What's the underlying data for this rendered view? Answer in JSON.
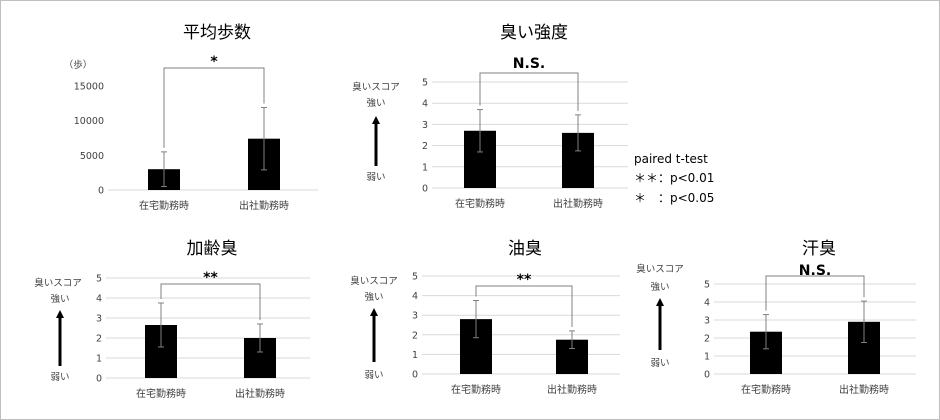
{
  "colors": {
    "bar": "#000000",
    "grid": "#d9d9d9",
    "error_bar": "#808080",
    "bracket": "#808080",
    "text": "#404040",
    "arrow": "#000000"
  },
  "legend": {
    "title": "paired t-test",
    "line1": "＊＊：p<0.01",
    "line2": "＊　：p<0.05"
  },
  "arrow_labels": {
    "score": "臭いスコア",
    "strong": "強い",
    "weak": "弱い"
  },
  "chart_data": [
    {
      "type": "bar",
      "title": "平均歩数",
      "unit_label": "（歩）",
      "categories": [
        "在宅勤務時",
        "出社勤務時"
      ],
      "values": [
        3000,
        7400
      ],
      "error": [
        2500,
        4500
      ],
      "ylim": [
        0,
        15000
      ],
      "yticks": [
        0,
        5000,
        10000,
        15000
      ],
      "significance": "*",
      "grid": false
    },
    {
      "type": "bar",
      "title": "臭い強度",
      "categories": [
        "在宅勤務時",
        "出社勤務時"
      ],
      "values": [
        2.7,
        2.6
      ],
      "error": [
        1.0,
        0.85
      ],
      "ylim": [
        0,
        5
      ],
      "yticks": [
        0,
        1,
        2,
        3,
        4,
        5
      ],
      "significance": "N.S.",
      "grid": true
    },
    {
      "type": "bar",
      "title": "加齢臭",
      "categories": [
        "在宅勤務時",
        "出社勤務時"
      ],
      "values": [
        2.65,
        2.0
      ],
      "error": [
        1.1,
        0.7
      ],
      "ylim": [
        0,
        5
      ],
      "yticks": [
        0,
        1,
        2,
        3,
        4,
        5
      ],
      "significance": "**",
      "grid": true
    },
    {
      "type": "bar",
      "title": "油臭",
      "categories": [
        "在宅勤務時",
        "出社勤務時"
      ],
      "values": [
        2.8,
        1.75
      ],
      "error": [
        0.95,
        0.45
      ],
      "ylim": [
        0,
        5
      ],
      "yticks": [
        0,
        1,
        2,
        3,
        4,
        5
      ],
      "significance": "**",
      "grid": true
    },
    {
      "type": "bar",
      "title": "汗臭",
      "categories": [
        "在宅勤務時",
        "出社勤務時"
      ],
      "values": [
        2.35,
        2.9
      ],
      "error": [
        0.95,
        1.15
      ],
      "ylim": [
        0,
        5
      ],
      "yticks": [
        0,
        1,
        2,
        3,
        4,
        5
      ],
      "significance": "N.S.",
      "grid": true
    }
  ]
}
